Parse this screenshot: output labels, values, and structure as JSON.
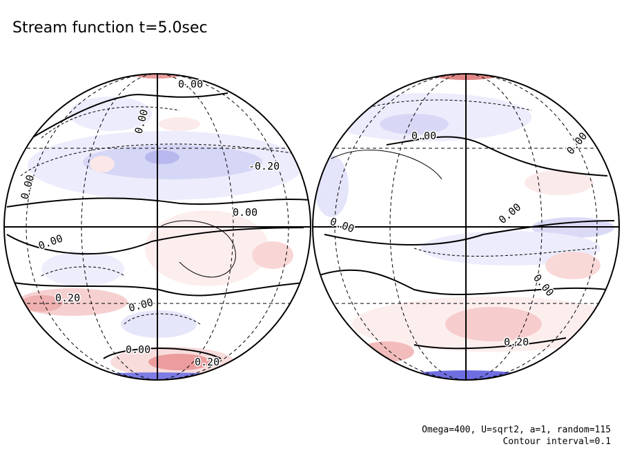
{
  "title": "Stream function t=5.0sec",
  "footer": [
    "Omega=400, U=sqrt2, a=1, random=115",
    "Contour interval=0.1"
  ],
  "globes": [
    {
      "contour_labels": [
        "0.00",
        "0.00",
        "-0.20",
        "0.00",
        "0.00",
        "0.00",
        "0.20",
        "0.00",
        "0.00",
        "0.20"
      ]
    },
    {
      "contour_labels": [
        "0.00",
        "0.00",
        "0.00",
        "0.00",
        "0.00",
        "0.20"
      ]
    }
  ]
}
